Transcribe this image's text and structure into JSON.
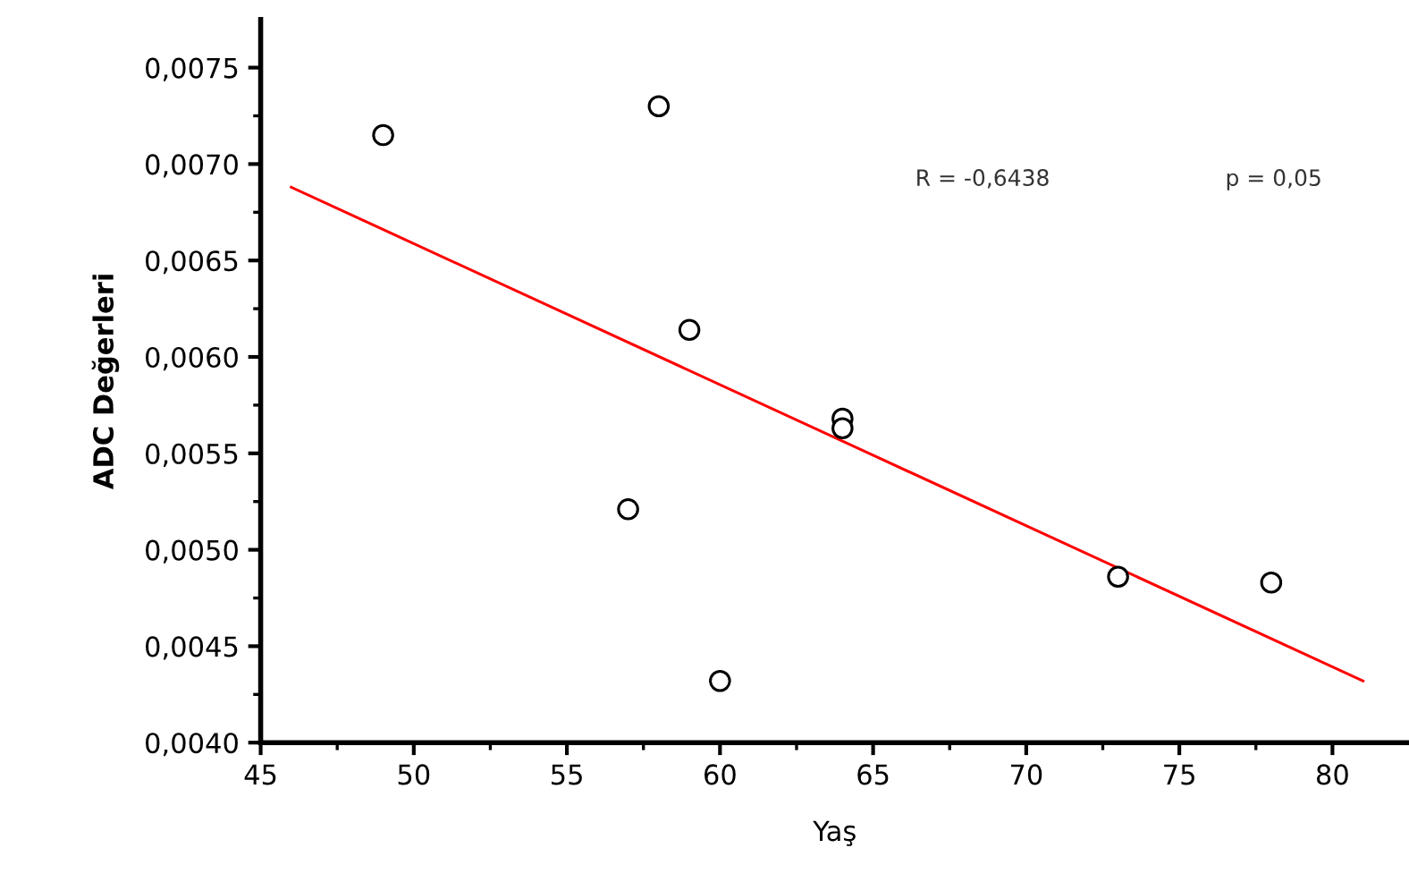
{
  "chart_data": {
    "type": "scatter",
    "xlabel": "Yaş",
    "ylabel": "ADC Değerleri",
    "series": [
      {
        "color": "#000000",
        "marker": "circle",
        "x": [
          49,
          58,
          59,
          64,
          64,
          57,
          60,
          73,
          78
        ],
        "values": [
          0.00715,
          0.0073,
          0.00614,
          0.00568,
          0.00563,
          0.00521,
          0.00432,
          0.00486,
          0.00483
        ]
      },
      {
        "type": "line",
        "color": "#ff0000",
        "marker": "none",
        "line_style": "solid",
        "x": [
          46,
          81
        ],
        "values": [
          0.00688,
          0.00432
        ]
      }
    ],
    "xlim": [
      45,
      82.5
    ],
    "xticks": [
      45,
      50,
      55,
      60,
      65,
      70,
      75,
      80
    ],
    "ylim": [
      0.004,
      0.00775
    ],
    "yticks": [
      {
        "value": 0.004,
        "label": "0,0040"
      },
      {
        "value": 0.0045,
        "label": "0,0045"
      },
      {
        "value": 0.005,
        "label": "0,0050"
      },
      {
        "value": 0.0055,
        "label": "0,0055"
      },
      {
        "value": 0.006,
        "label": "0,0060"
      },
      {
        "value": 0.0065,
        "label": "0,0065"
      },
      {
        "value": 0.007,
        "label": "0,0070"
      },
      {
        "value": 0.0075,
        "label": "0,0075"
      }
    ],
    "annotations": [
      "R = -0,6438",
      "p = 0,05"
    ],
    "grid": false,
    "legend": false
  }
}
